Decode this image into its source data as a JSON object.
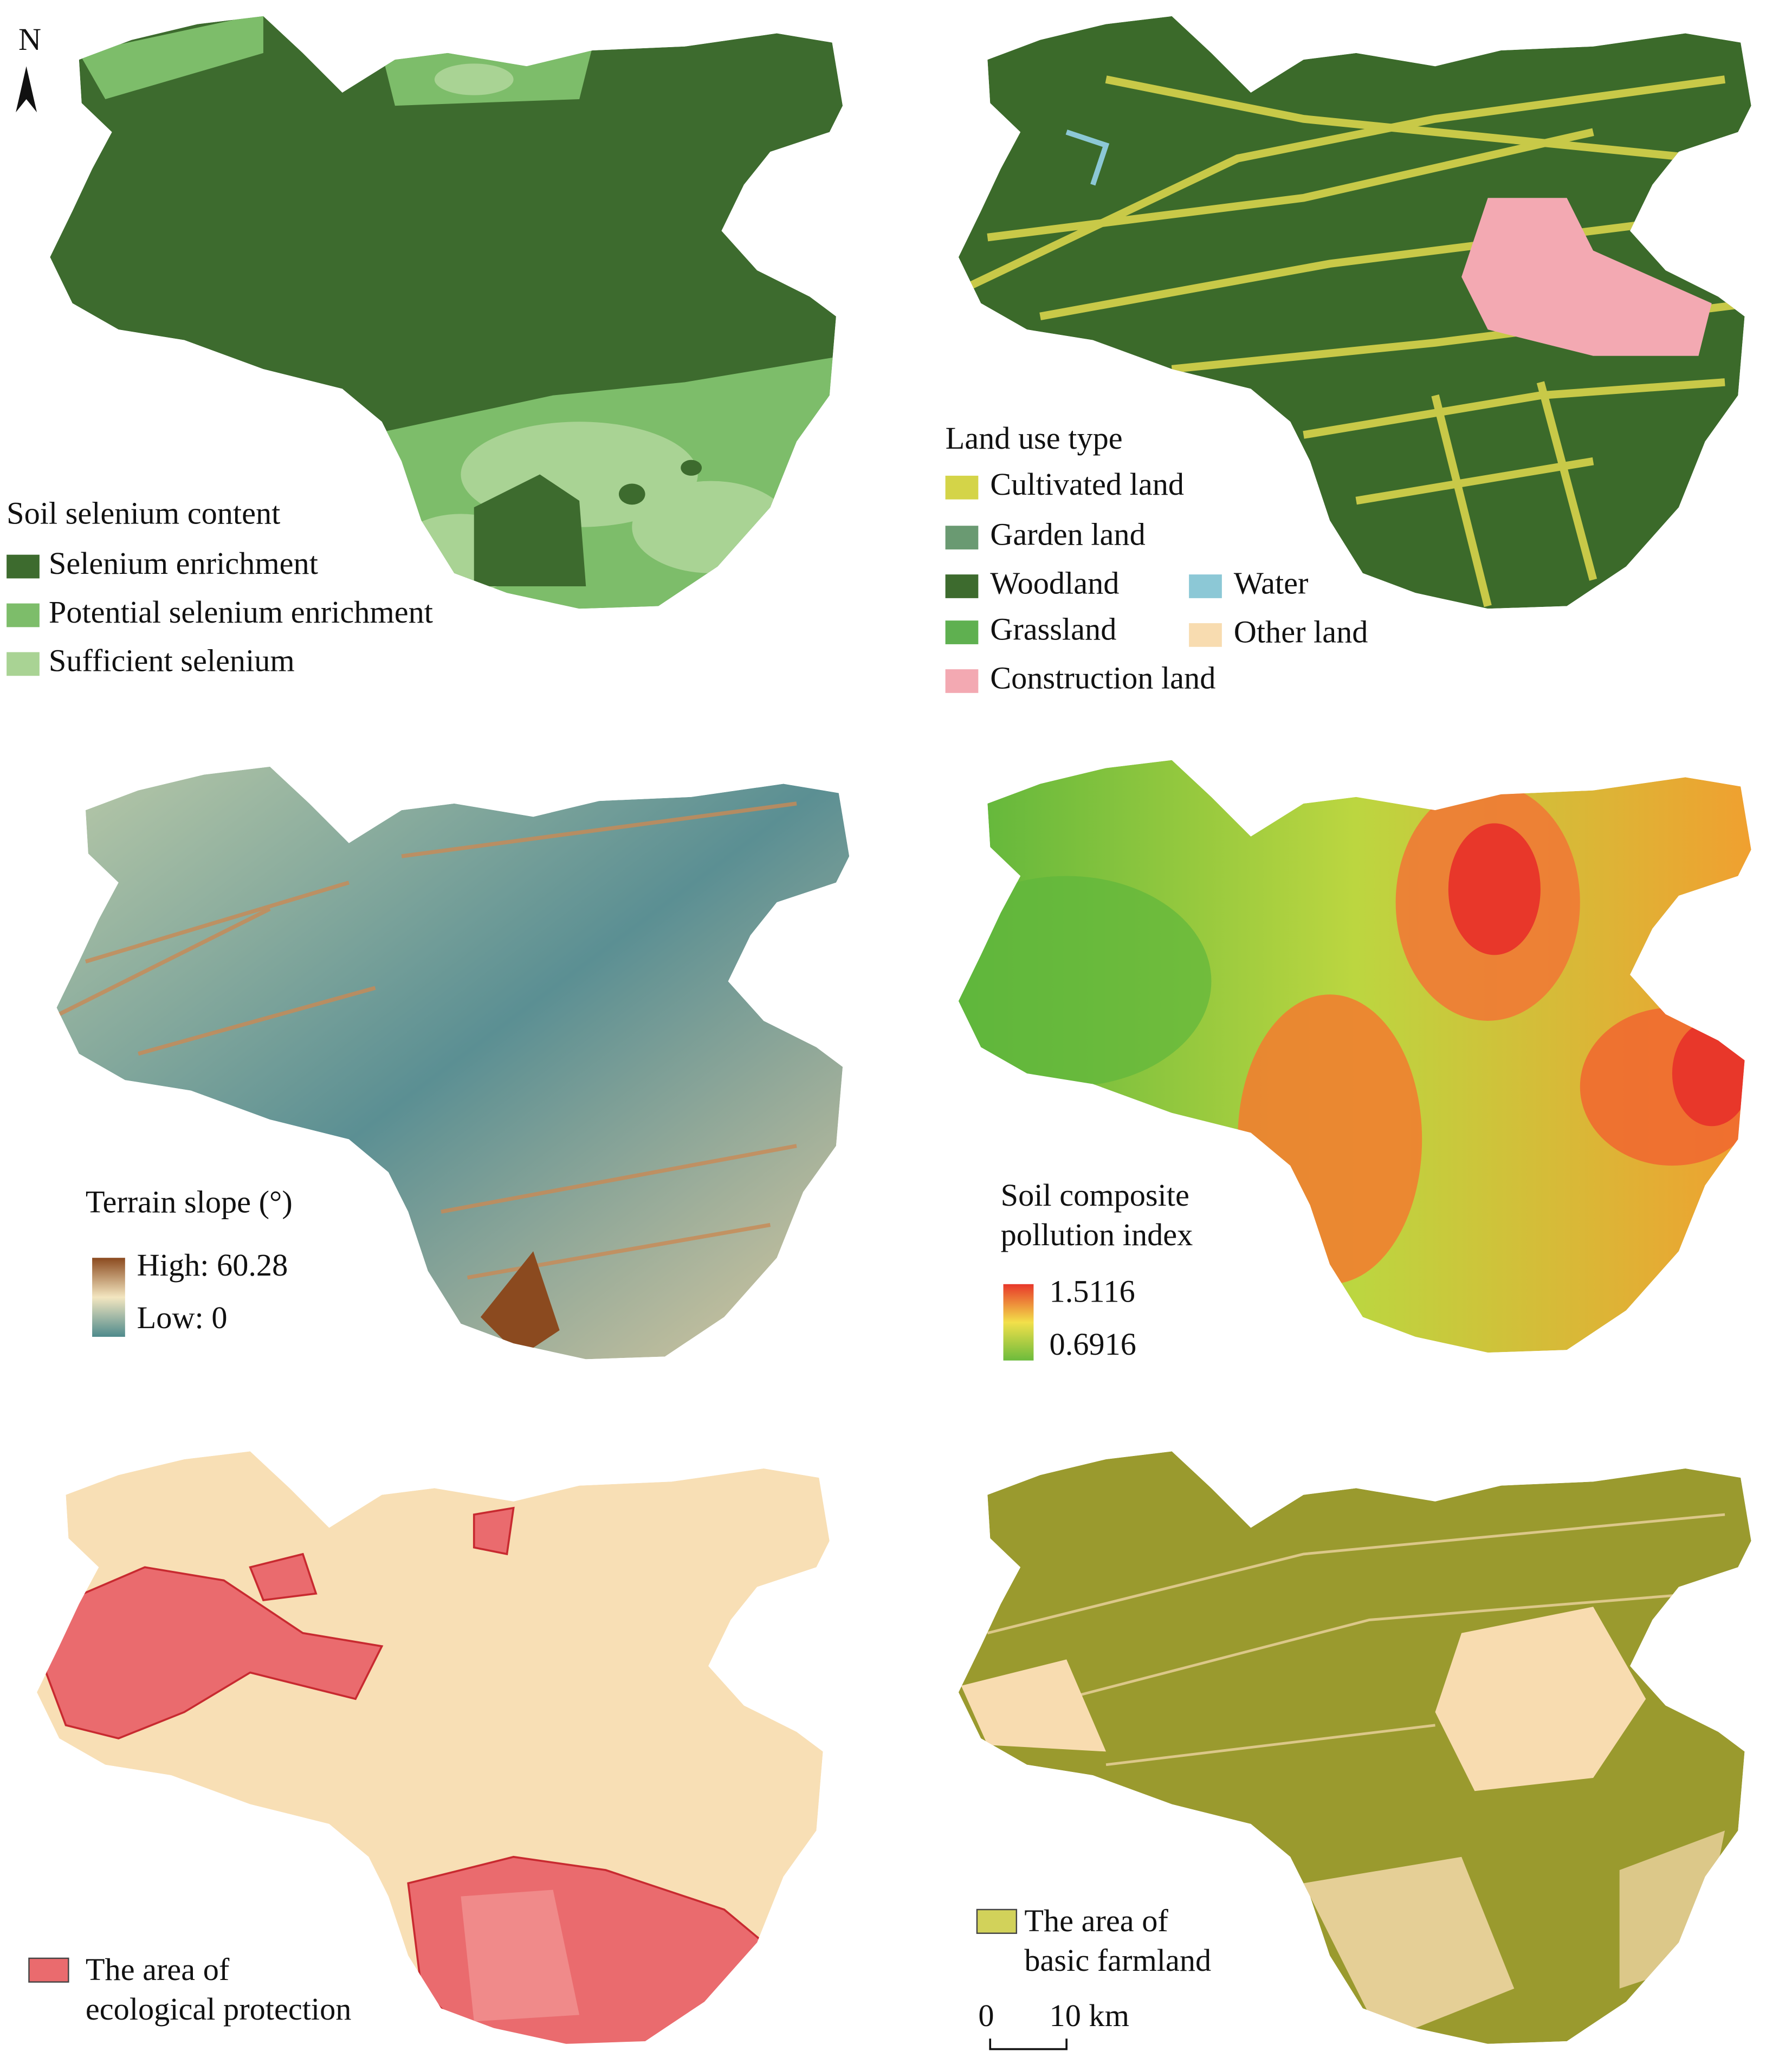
{
  "north_arrow": {
    "label": "N"
  },
  "panels": [
    {
      "legend_title": "Soil selenium content",
      "items": [
        {
          "label": "Selenium enrichment",
          "color": "#3d6b2e"
        },
        {
          "label": "Potential selenium enrichment",
          "color": "#7dbd6a"
        },
        {
          "label": "Sufficient selenium",
          "color": "#a9d394"
        }
      ]
    },
    {
      "legend_title": "Land use type",
      "items": [
        {
          "label": "Cultivated land",
          "color": "#d4d448"
        },
        {
          "label": "Garden land",
          "color": "#6a9a72"
        },
        {
          "label": "Woodland",
          "color": "#3d6b2e"
        },
        {
          "label": "Grassland",
          "color": "#5fb050"
        },
        {
          "label": "Construction land",
          "color": "#f3a9b2"
        },
        {
          "label": "Water",
          "color": "#8cc8d6"
        },
        {
          "label": "Other land",
          "color": "#f8dcb0"
        }
      ]
    },
    {
      "legend_title": "Terrain slope (°)",
      "high": "High: 60.28",
      "low": "Low: 0",
      "colors": [
        "#8b4a1f",
        "#f3e6c0",
        "#4e8a8c"
      ]
    },
    {
      "legend_title_lines": [
        "Soil composite",
        "pollution index"
      ],
      "high": "1.5116",
      "low": "0.6916",
      "colors": [
        "#e8372a",
        "#f2e04a",
        "#6cbb3c"
      ]
    },
    {
      "items": [
        {
          "label_lines": [
            "The area of",
            "ecological protection"
          ],
          "color": "#ea6b6e"
        }
      ]
    },
    {
      "items": [
        {
          "label_lines": [
            "The area of",
            "basic farmland"
          ],
          "color": "#d2d25a"
        }
      ],
      "scale_bar": {
        "start": "0",
        "end": "10 km"
      }
    }
  ]
}
